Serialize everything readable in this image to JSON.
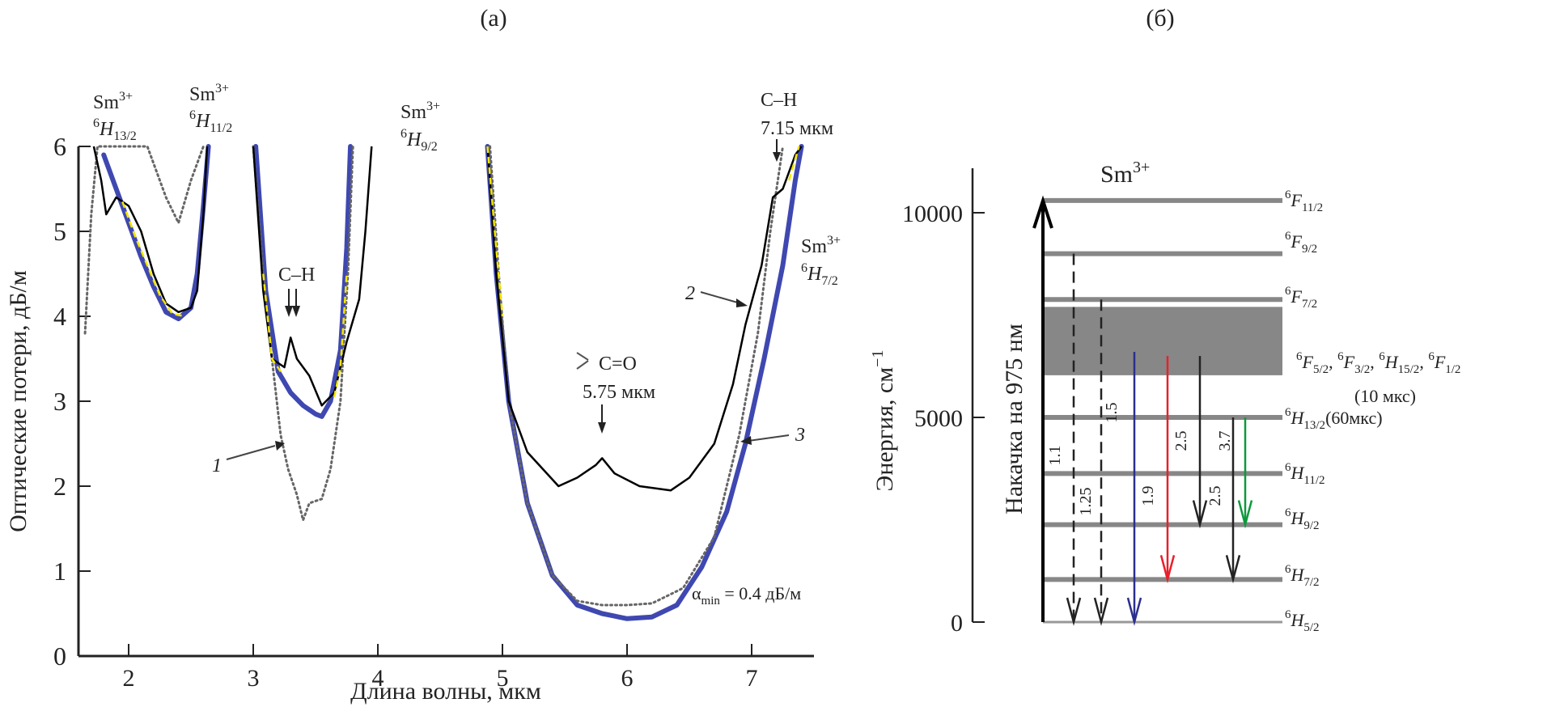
{
  "chart_data": [
    {
      "type": "line",
      "panel_label": "(a)",
      "xlabel": "Длина волны, мкм",
      "ylabel": "Оптические потери, дБ/м",
      "xlim": [
        1.6,
        7.5
      ],
      "ylim": [
        0,
        6
      ],
      "xticks": [
        "2",
        "3",
        "4",
        "5",
        "6",
        "7"
      ],
      "yticks": [
        "0",
        "1",
        "2",
        "3",
        "4",
        "5",
        "6"
      ],
      "grid": false,
      "series": [
        {
          "name": "1",
          "style": "dotted",
          "color": "#666666",
          "points": [
            [
              1.65,
              3.8
            ],
            [
              1.7,
              5.2
            ],
            [
              1.75,
              6.0
            ],
            [
              2.15,
              6.0
            ],
            [
              2.3,
              5.4
            ],
            [
              2.4,
              5.1
            ],
            [
              2.5,
              5.6
            ],
            [
              2.6,
              6.0
            ],
            [
              null,
              null
            ],
            [
              3.0,
              6.0
            ],
            [
              3.08,
              4.5
            ],
            [
              3.15,
              3.5
            ],
            [
              3.22,
              2.6
            ],
            [
              3.28,
              2.2
            ],
            [
              3.35,
              1.9
            ],
            [
              3.4,
              1.6
            ],
            [
              3.45,
              1.8
            ],
            [
              3.55,
              1.85
            ],
            [
              3.62,
              2.2
            ],
            [
              3.7,
              3.0
            ],
            [
              3.76,
              4.5
            ],
            [
              3.8,
              6.0
            ],
            [
              null,
              null
            ],
            [
              4.9,
              6.0
            ],
            [
              4.97,
              4.5
            ],
            [
              5.05,
              3.0
            ],
            [
              5.2,
              1.8
            ],
            [
              5.4,
              0.95
            ],
            [
              5.6,
              0.65
            ],
            [
              5.8,
              0.6
            ],
            [
              6.0,
              0.6
            ],
            [
              6.2,
              0.62
            ],
            [
              6.45,
              0.8
            ],
            [
              6.7,
              1.4
            ],
            [
              6.9,
              2.6
            ],
            [
              7.05,
              3.8
            ],
            [
              7.15,
              5.0
            ],
            [
              7.25,
              6.0
            ]
          ]
        },
        {
          "name": "2",
          "style": "solid",
          "color": "#000000",
          "points": [
            [
              1.72,
              6.0
            ],
            [
              1.78,
              5.6
            ],
            [
              1.82,
              5.2
            ],
            [
              1.9,
              5.4
            ],
            [
              2.0,
              5.3
            ],
            [
              2.1,
              5.0
            ],
            [
              2.2,
              4.5
            ],
            [
              2.3,
              4.15
            ],
            [
              2.4,
              4.05
            ],
            [
              2.5,
              4.1
            ],
            [
              2.55,
              4.3
            ],
            [
              2.6,
              5.2
            ],
            [
              2.63,
              6.0
            ],
            [
              null,
              null
            ],
            [
              3.0,
              6.0
            ],
            [
              3.08,
              4.3
            ],
            [
              3.15,
              3.5
            ],
            [
              3.25,
              3.4
            ],
            [
              3.3,
              3.75
            ],
            [
              3.35,
              3.5
            ],
            [
              3.45,
              3.3
            ],
            [
              3.55,
              2.95
            ],
            [
              3.65,
              3.1
            ],
            [
              3.75,
              3.7
            ],
            [
              3.85,
              4.2
            ],
            [
              3.9,
              5.0
            ],
            [
              3.95,
              6.0
            ],
            [
              null,
              null
            ],
            [
              4.88,
              6.0
            ],
            [
              4.95,
              4.5
            ],
            [
              5.05,
              3.0
            ],
            [
              5.2,
              2.4
            ],
            [
              5.45,
              2.0
            ],
            [
              5.6,
              2.1
            ],
            [
              5.75,
              2.25
            ],
            [
              5.8,
              2.33
            ],
            [
              5.9,
              2.15
            ],
            [
              6.1,
              2.0
            ],
            [
              6.35,
              1.95
            ],
            [
              6.5,
              2.1
            ],
            [
              6.7,
              2.5
            ],
            [
              6.85,
              3.2
            ],
            [
              6.95,
              3.9
            ],
            [
              7.08,
              4.6
            ],
            [
              7.17,
              5.4
            ],
            [
              7.25,
              5.5
            ],
            [
              7.35,
              5.9
            ],
            [
              7.4,
              6.0
            ]
          ]
        },
        {
          "name": "3",
          "style": "thick",
          "color": "#3f48b0",
          "points": [
            [
              1.8,
              5.9
            ],
            [
              1.9,
              5.5
            ],
            [
              2.0,
              5.1
            ],
            [
              2.1,
              4.7
            ],
            [
              2.2,
              4.35
            ],
            [
              2.3,
              4.05
            ],
            [
              2.4,
              3.97
            ],
            [
              2.5,
              4.1
            ],
            [
              2.55,
              4.5
            ],
            [
              2.6,
              5.3
            ],
            [
              2.64,
              6.0
            ],
            [
              null,
              null
            ],
            [
              3.02,
              6.0
            ],
            [
              3.1,
              4.3
            ],
            [
              3.2,
              3.35
            ],
            [
              3.3,
              3.1
            ],
            [
              3.4,
              2.95
            ],
            [
              3.5,
              2.85
            ],
            [
              3.55,
              2.82
            ],
            [
              3.62,
              3.0
            ],
            [
              3.7,
              3.6
            ],
            [
              3.75,
              4.8
            ],
            [
              3.78,
              6.0
            ],
            [
              null,
              null
            ],
            [
              4.88,
              6.0
            ],
            [
              4.95,
              4.5
            ],
            [
              5.05,
              3.0
            ],
            [
              5.2,
              1.8
            ],
            [
              5.4,
              0.95
            ],
            [
              5.6,
              0.6
            ],
            [
              5.8,
              0.5
            ],
            [
              6.0,
              0.44
            ],
            [
              6.2,
              0.46
            ],
            [
              6.4,
              0.6
            ],
            [
              6.6,
              1.05
            ],
            [
              6.8,
              1.7
            ],
            [
              6.95,
              2.5
            ],
            [
              7.1,
              3.5
            ],
            [
              7.25,
              4.6
            ],
            [
              7.35,
              5.6
            ],
            [
              7.4,
              6.0
            ]
          ]
        },
        {
          "name": "fit",
          "style": "dashed",
          "color": "#f2e600",
          "points": [
            [
              1.95,
              5.35
            ],
            [
              2.05,
              4.95
            ],
            [
              2.15,
              4.6
            ],
            [
              2.25,
              4.25
            ],
            [
              2.35,
              4.03
            ],
            [
              2.45,
              4.0
            ],
            [
              null,
              null
            ],
            [
              3.08,
              4.5
            ],
            [
              3.15,
              3.5
            ],
            [
              3.22,
              3.35
            ],
            [
              null,
              null
            ],
            [
              3.65,
              3.05
            ],
            [
              3.7,
              3.4
            ],
            [
              3.75,
              4.5
            ],
            [
              null,
              null
            ],
            [
              4.88,
              6.0
            ],
            [
              4.95,
              4.8
            ],
            [
              5.0,
              4.0
            ],
            [
              null,
              null
            ],
            [
              7.3,
              5.6
            ],
            [
              7.38,
              6.0
            ]
          ]
        }
      ],
      "annotations": [
        {
          "text": "Sm³⁺",
          "sub": "⁶H13/2"
        },
        {
          "text": "Sm³⁺",
          "sub": "⁶H11/2"
        },
        {
          "text": "Sm³⁺",
          "sub": "⁶H9/2"
        },
        {
          "text": "Sm³⁺",
          "sub": "⁶H7/2"
        },
        {
          "text": "C–H"
        },
        {
          "text": "C–H",
          "sub": "7.15 мкм"
        },
        {
          "text": "C=O",
          "sub": "5.75 мкм"
        },
        {
          "text": "αmin = 0.4 дБ/м"
        },
        {
          "text": "1"
        },
        {
          "text": "2"
        },
        {
          "text": "3"
        }
      ]
    },
    {
      "type": "diagram",
      "panel_label": "(б)",
      "title": "Sm³⁺",
      "ylabel": "Энергия, см⁻¹",
      "pump_label": "Накачка на 975 нм",
      "ylim": [
        0,
        11000
      ],
      "yticks": [
        "0",
        "5000",
        "10000"
      ],
      "levels": [
        {
          "name": "6F11/2",
          "energy": 10300
        },
        {
          "name": "6F9/2",
          "energy": 9000
        },
        {
          "name": "6F7/2",
          "energy": 7880
        },
        {
          "name": "6F5/2, 6F3/2, 6H15/2, 6F1/2",
          "band": [
            6030,
            7700
          ],
          "lifetime": "(10 мкс)"
        },
        {
          "name": "6H13/2",
          "energy": 5000,
          "lifetime": "(60мкс)"
        },
        {
          "name": "6H11/2",
          "energy": 3630
        },
        {
          "name": "6H9/2",
          "energy": 2380
        },
        {
          "name": "6H7/2",
          "energy": 1040
        },
        {
          "name": "6H5/2",
          "energy": 0
        }
      ],
      "transitions": [
        {
          "label": "1.1",
          "from": 9000,
          "to": 0,
          "style": "dashed",
          "color": "#222222"
        },
        {
          "label": "1.25",
          "from": 7880,
          "to": 0,
          "style": "dashed",
          "color": "#222222"
        },
        {
          "label": "1.5",
          "from": 6600,
          "to": 0,
          "style": "solid",
          "color": "#2b2f8c"
        },
        {
          "label": "1.9",
          "from": 6500,
          "to": 1040,
          "style": "solid",
          "color": "#e8202a"
        },
        {
          "label": "2.5",
          "from": 6500,
          "to": 2380,
          "style": "solid",
          "color": "#222222"
        },
        {
          "label": "2.5",
          "from": 5000,
          "to": 1040,
          "style": "solid",
          "color": "#222222"
        },
        {
          "label": "3.7",
          "from": 5000,
          "to": 2380,
          "style": "solid",
          "color": "#0b9a3c"
        }
      ]
    }
  ]
}
